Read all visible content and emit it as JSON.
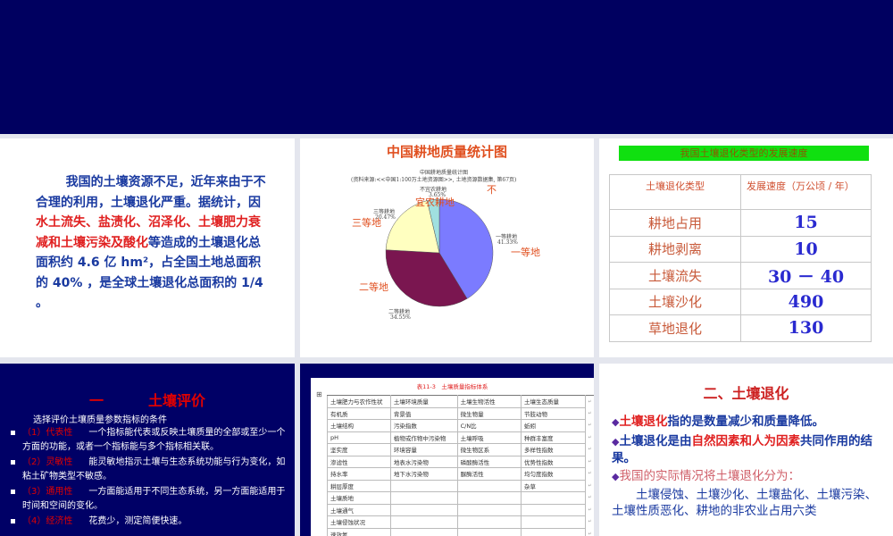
{
  "slide1": {
    "pre": "我国的土壤资源不足，近年来由于不合理的利用，土壤退化严重。据统计，因",
    "red": "水土流失、盐渍化、沼泽化、土壤肥力衰减和土壤污染及酸化",
    "post": "等造成的土壤退化总面积约 4.6 亿 hm²，占全国土地总面积的 40% ，是全球土壤退化总面积的 1/4 。"
  },
  "slide2": {
    "title": "中国耕地质量统计图",
    "inner_title": "中国耕地质量统计图",
    "source": "(资料来源:<<中国1:100万土地资源图>>, 土地资源数据集, 第67页)",
    "overlay": {
      "first": "一等地",
      "second": "二等地",
      "third": "三等地",
      "unfit_a": "不",
      "unfit_b": "宜农耕地"
    },
    "colors": {
      "first": "#7b7bff",
      "second": "#7a1650",
      "third": "#ffffc0",
      "unfit": "#a0e0e0"
    },
    "chart_data": {
      "type": "pie",
      "title": "中国耕地质量统计图",
      "categories": [
        "一等耕地",
        "二等耕地",
        "三等耕地",
        "不宜农耕地"
      ],
      "values": [
        41.33,
        34.55,
        20.47,
        3.65
      ],
      "labels": [
        "41.33%",
        "34.55%",
        "20.47%",
        "3.65%"
      ]
    }
  },
  "slide3": {
    "title": "我国土壤退化类型的发展速度",
    "headers": [
      "土壤退化类型",
      "发展速度（万公顷 / 年）"
    ],
    "rows": [
      {
        "type": "耕地占用",
        "rate": "15"
      },
      {
        "type": "耕地剥离",
        "rate": "10"
      },
      {
        "type": "土壤流失",
        "rate": "30 － 40"
      },
      {
        "type": "土壤沙化",
        "rate": "490"
      },
      {
        "type": "草地退化",
        "rate": "130"
      }
    ]
  },
  "slide4": {
    "num": "一",
    "title": "土壤评价",
    "subtitle": "选择评价土壤质量参数指标的条件",
    "items": [
      {
        "label": "（1）代表性",
        "text": "一个指标能代表或反映土壤质量的全部或至少一个方面的功能，或者一个指标能与多个指标相关联。"
      },
      {
        "label": "（2）灵敏性",
        "text": "能灵敏地指示土壤与生态系统功能与行为变化，如粘土矿物类型不敏感。"
      },
      {
        "label": "（3）通用性",
        "text": "一方面能适用于不同生态系统，另一方面能适用于时间和空间的变化。"
      },
      {
        "label": "（4）经济性",
        "text": "花费少，测定简便快速。"
      }
    ]
  },
  "slide5": {
    "title": "表11-3　土壤质量指标体系",
    "rows": [
      [
        "土壤肥力与农作性状",
        "土壤环境质量",
        "土壤生物活性",
        "土壤生态质量"
      ],
      [
        "有机质",
        "背景值",
        "微生物量",
        "节肢动物"
      ],
      [
        "土壤结构",
        "污染指数",
        "C/N比",
        "蚯蚓"
      ],
      [
        "pH",
        "植物或作物中污染物",
        "土壤呼吸",
        "种群丰富度"
      ],
      [
        "坚实度",
        "环境容量",
        "微生物区系",
        "多样性指数"
      ],
      [
        "渗滤性",
        "地表水污染物",
        "磷酸酶活性",
        "优势性指数"
      ],
      [
        "持水率",
        "地下水污染物",
        "脲酶活性",
        "均匀度指数"
      ],
      [
        "耕层厚度",
        "",
        "",
        "杂草"
      ],
      [
        "土壤质地",
        "",
        "",
        ""
      ],
      [
        "土壤通气",
        "",
        "",
        ""
      ],
      [
        "土壤侵蚀状况",
        "",
        "",
        ""
      ],
      [
        "速效氮",
        "",
        "",
        ""
      ]
    ]
  },
  "slide6": {
    "title": "二、土壤退化",
    "b1_red": "土壤退化",
    "b1_rest": "指的是数量减少和质量降低。",
    "b2_a": "土壤退化是由",
    "b2_red": "自然因素和人为因素",
    "b2_b": "共同作用的结果。",
    "b3": "我国的实际情况将土壤退化分为：",
    "b3_detail": "土壤侵蚀、土壤沙化、土壤盐化、土壤污染、土壤性质恶化、耕地的非农业占用六类"
  }
}
